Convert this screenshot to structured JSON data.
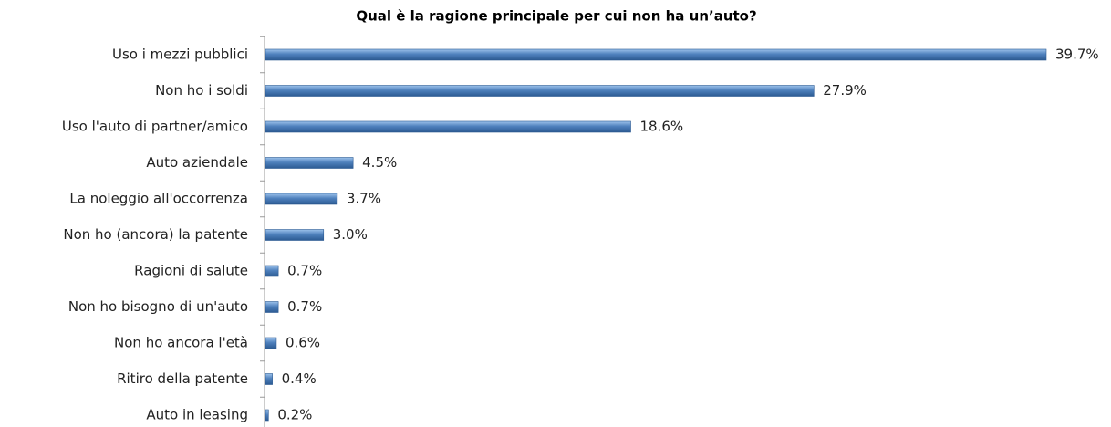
{
  "chart_data": {
    "type": "bar",
    "orientation": "horizontal",
    "title": "Qual è la ragione principale per cui non ha un’auto?",
    "categories": [
      "Uso i mezzi pubblici",
      "Non ho i soldi",
      "Uso l'auto di partner/amico",
      "Auto aziendale",
      "La noleggio all'occorrenza",
      "Non ho (ancora) la patente",
      "Ragioni di salute",
      "Non ho bisogno di un'auto",
      "Non ho ancora l'età",
      "Ritiro della patente",
      "Auto in leasing"
    ],
    "values": [
      39.7,
      27.9,
      18.6,
      4.5,
      3.7,
      3.0,
      0.7,
      0.7,
      0.6,
      0.4,
      0.2
    ],
    "value_labels": [
      "39.7%",
      "27.9%",
      "18.6%",
      "4.5%",
      "3.7%",
      "3.0%",
      "0.7%",
      "0.7%",
      "0.6%",
      "0.4%",
      "0.2%"
    ],
    "color": "#4f81bd"
  }
}
